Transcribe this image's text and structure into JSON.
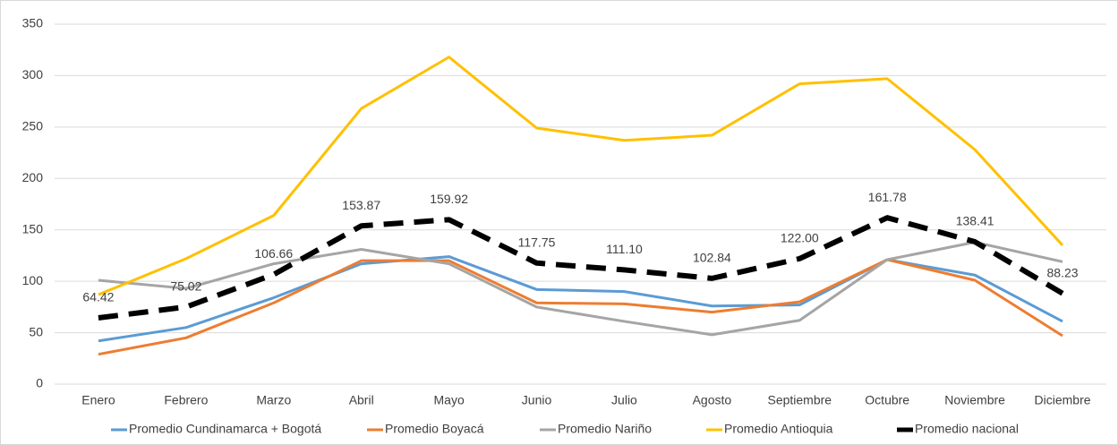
{
  "chart_data": {
    "type": "line",
    "categories": [
      "Enero",
      "Febrero",
      "Marzo",
      "Abril",
      "Mayo",
      "Junio",
      "Julio",
      "Agosto",
      "Septiembre",
      "Octubre",
      "Noviembre",
      "Diciembre"
    ],
    "series": [
      {
        "name": "Promedio Cundinamarca + Bogotá",
        "color": "#5b9bd5",
        "values": [
          42,
          55,
          84,
          117,
          124,
          92,
          90,
          76,
          77,
          121,
          106,
          61
        ]
      },
      {
        "name": "Promedio Boyacá",
        "color": "#ed7d31",
        "values": [
          29,
          45,
          79,
          120,
          120,
          79,
          78,
          70,
          80,
          121,
          101,
          47
        ]
      },
      {
        "name": "Promedio Nariño",
        "color": "#a5a5a5",
        "values": [
          101,
          93,
          117,
          131,
          117,
          75,
          61,
          48,
          62,
          121,
          138,
          119
        ]
      },
      {
        "name": "Promedio Antioquia",
        "color": "#ffc000",
        "values": [
          87,
          122,
          164,
          268,
          318,
          249,
          237,
          242,
          292,
          297,
          228,
          135
        ]
      },
      {
        "name": "Promedio nacional",
        "color": "#000000",
        "dashed": true,
        "values": [
          64.42,
          75.02,
          106.66,
          153.87,
          159.92,
          117.75,
          111.1,
          102.84,
          122.0,
          161.78,
          138.41,
          88.23
        ],
        "value_labels": [
          "64.42",
          "75.02",
          "106.66",
          "153.87",
          "159.92",
          "117.75",
          "111.10",
          "102.84",
          "122.00",
          "161.78",
          "138.41",
          "88.23"
        ]
      }
    ],
    "ylim": [
      0,
      350
    ],
    "yticks": [
      0,
      50,
      100,
      150,
      200,
      250,
      300,
      350
    ],
    "grid": true,
    "legend": "bottom"
  }
}
